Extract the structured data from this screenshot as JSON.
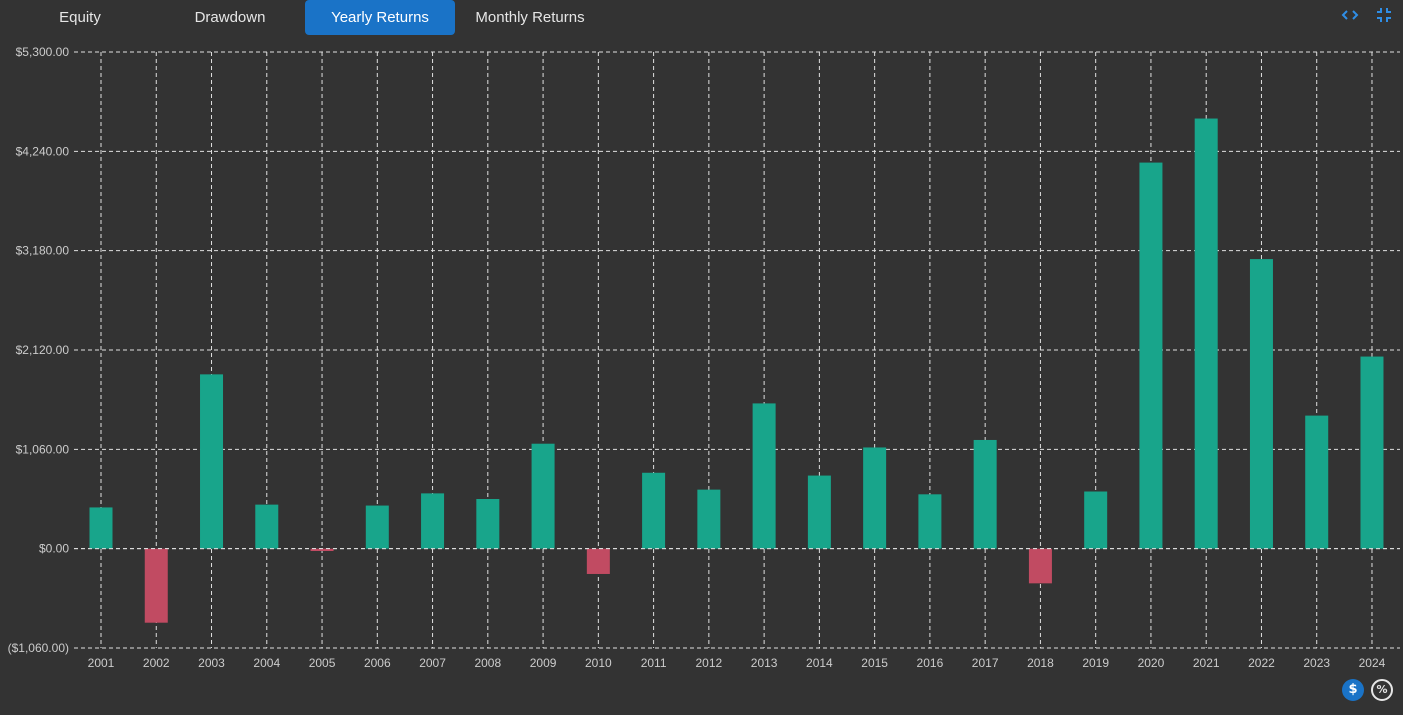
{
  "tabs": [
    {
      "label": "Equity"
    },
    {
      "label": "Drawdown"
    },
    {
      "label": "Yearly Returns"
    },
    {
      "label": "Monthly Returns"
    }
  ],
  "active_tab": "Yearly Returns",
  "icons": {
    "expand": "code-brackets-icon",
    "collapse": "collapse-icon",
    "dollar": "dollar-icon",
    "percent": "percent-icon"
  },
  "buttons": {
    "dollar_label": "$",
    "percent_label": "%"
  },
  "colors": {
    "background": "#333333",
    "positive": "#18a58b",
    "negative": "#c14b62",
    "accent": "#1a73c7",
    "grid": "#e0e0e0",
    "text": "#cccccc"
  },
  "chart_data": {
    "type": "bar",
    "title": "",
    "xlabel": "",
    "ylabel": "",
    "ylim": [
      -1060,
      5300
    ],
    "yticks": [
      5300,
      4240,
      3180,
      2120,
      1060,
      0,
      -1060
    ],
    "ytick_labels": [
      "$5,300.00",
      "$4,240.00",
      "$3,180.00",
      "$2,120.00",
      "$1,060.00",
      "$0.00",
      "($1,060.00)"
    ],
    "categories": [
      "2001",
      "2002",
      "2003",
      "2004",
      "2005",
      "2006",
      "2007",
      "2008",
      "2009",
      "2010",
      "2011",
      "2012",
      "2013",
      "2014",
      "2015",
      "2016",
      "2017",
      "2018",
      "2019",
      "2020",
      "2021",
      "2022",
      "2023",
      "2024"
    ],
    "values": [
      440,
      -790,
      1860,
      470,
      -25,
      460,
      590,
      530,
      1120,
      -270,
      810,
      630,
      1550,
      780,
      1080,
      580,
      1160,
      -370,
      610,
      4120,
      4590,
      3090,
      1420,
      2050
    ]
  }
}
